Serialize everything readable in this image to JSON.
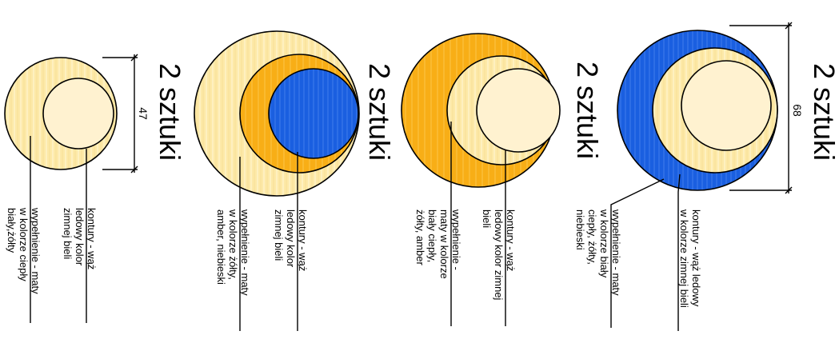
{
  "colors": {
    "light_yellow": "#fde9a8",
    "cream": "#fff2d0",
    "amber": "#f8ae16",
    "blue": "#1a5fe0",
    "outline": "#000000"
  },
  "designs": [
    {
      "quantity": "2 sztuki",
      "dimension": "47",
      "label1": [
        "kontury - wąż",
        "ledowy kolor",
        "zimnej bieli"
      ],
      "label2": [
        "wypełnienie - maty",
        "w kolorze ciepły",
        "biały,żółty"
      ]
    },
    {
      "quantity": "2 sztuki",
      "label1": [
        "kontury - wąż",
        "ledowy kolor",
        "zimnej bieli"
      ],
      "label2": [
        "wypełnienie - maty",
        "w kolorze żółty,",
        "amber, niebieski"
      ]
    },
    {
      "quantity": "2 sztuki",
      "label1": [
        "kontury - wąż",
        "ledowy kolor zimnej",
        "bieli"
      ],
      "label2": [
        "wypełnienie -",
        "maty w kolorze",
        "biały ciepły,",
        "żółty, amber"
      ]
    },
    {
      "quantity": "2 sztuki",
      "label1": [
        "kontury - wąż ledowy",
        "w kolorze zimnej bieli"
      ],
      "label2": [
        "wypełnienie - maty",
        "w kolorze biały",
        "ciepły, żółty,",
        "niebieski"
      ]
    },
    {
      "quantity": "2 sztuki",
      "dimension": "68"
    }
  ]
}
